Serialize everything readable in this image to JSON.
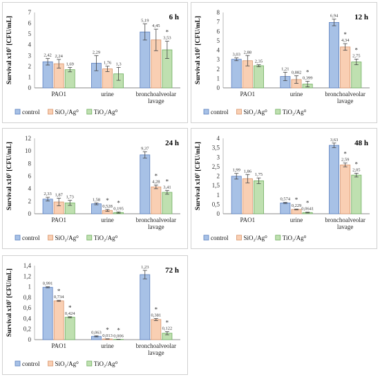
{
  "legend": [
    {
      "label": "control",
      "color": "#a7c1e6",
      "stroke": "#5b7fbf"
    },
    {
      "label": "SiO₂/Ag⁰",
      "color": "#f9cfb3",
      "stroke": "#d8936a"
    },
    {
      "label": "TiO₂/Ag⁰",
      "color": "#bfe0b0",
      "stroke": "#6fae5f"
    }
  ],
  "chart_data": [
    {
      "type": "bar",
      "time_label": "6 h",
      "ylabel": "Survival x10⁷ [CFU/mL]",
      "ylim": [
        0,
        7
      ],
      "yticks": [
        0,
        1,
        2,
        3,
        4,
        5,
        6,
        7
      ],
      "categories": [
        "PAO1",
        "urine",
        "bronchoalveolar lavage"
      ],
      "series": [
        {
          "name": "control",
          "values": [
            2.42,
            2.29,
            5.19
          ],
          "labels": [
            "2,42",
            "2,29",
            "5,19"
          ],
          "errors": [
            0.3,
            0.7,
            0.75
          ],
          "stars": [
            false,
            false,
            false
          ]
        },
        {
          "name": "SiO₂/Ag⁰",
          "values": [
            2.24,
            1.76,
            4.45
          ],
          "labels": [
            "2,24",
            "1,76",
            "4,45"
          ],
          "errors": [
            0.4,
            0.25,
            1.0
          ],
          "stars": [
            false,
            false,
            false
          ]
        },
        {
          "name": "TiO₂/Ag⁰",
          "values": [
            1.69,
            1.3,
            3.53
          ],
          "labels": [
            "1,69",
            "1,3",
            "3,53"
          ],
          "errors": [
            0.2,
            0.6,
            0.8
          ],
          "stars": [
            false,
            false,
            true
          ]
        }
      ]
    },
    {
      "type": "bar",
      "time_label": "12 h",
      "ylabel": "Survival x10⁷ [CFU/mL]",
      "ylim": [
        0,
        8
      ],
      "yticks": [
        0,
        1,
        2,
        3,
        4,
        5,
        6,
        7,
        8
      ],
      "categories": [
        "PAO1",
        "urine",
        "bronchoalveolar lavage"
      ],
      "series": [
        {
          "name": "control",
          "values": [
            3.03,
            1.21,
            6.94
          ],
          "labels": [
            "3,03",
            "1,21",
            "6,94"
          ],
          "errors": [
            0.15,
            0.45,
            0.35
          ],
          "stars": [
            false,
            false,
            false
          ]
        },
        {
          "name": "SiO₂/Ag⁰",
          "values": [
            2.88,
            0.882,
            4.34
          ],
          "labels": [
            "2,88",
            "0,882",
            "4,34"
          ],
          "errors": [
            0.55,
            0.4,
            0.35
          ],
          "stars": [
            false,
            false,
            true
          ]
        },
        {
          "name": "TiO₂/Ag⁰",
          "values": [
            2.35,
            0.399,
            2.75
          ],
          "labels": [
            "2,35",
            "0,399",
            "2,75"
          ],
          "errors": [
            0.1,
            0.3,
            0.3
          ],
          "stars": [
            false,
            true,
            true
          ]
        }
      ]
    },
    {
      "type": "bar",
      "time_label": "24 h",
      "ylabel": "Survival x10⁷ [CFU/mL]",
      "ylim": [
        0,
        12
      ],
      "yticks": [
        0,
        2,
        4,
        6,
        8,
        10,
        12
      ],
      "categories": [
        "PAO1",
        "urine",
        "bronchoalveolar lavage"
      ],
      "series": [
        {
          "name": "control",
          "values": [
            2.33,
            1.58,
            9.37
          ],
          "labels": [
            "2,33",
            "1,58",
            "9,37"
          ],
          "errors": [
            0.3,
            0.15,
            0.5
          ],
          "stars": [
            false,
            false,
            false
          ]
        },
        {
          "name": "SiO₂/Ag⁰",
          "values": [
            1.87,
            0.528,
            4.28
          ],
          "labels": [
            "1,87",
            "0,528",
            "4,28"
          ],
          "errors": [
            0.6,
            0.15,
            0.3
          ],
          "stars": [
            false,
            true,
            true
          ]
        },
        {
          "name": "TiO₂/Ag⁰",
          "values": [
            1.73,
            0.195,
            3.41
          ],
          "labels": [
            "1,73",
            "0,195",
            "3,41"
          ],
          "errors": [
            0.4,
            0.1,
            0.3
          ],
          "stars": [
            false,
            true,
            true
          ]
        }
      ]
    },
    {
      "type": "bar",
      "time_label": "48 h",
      "ylabel": "Survival x10⁷ [CFU/mL]",
      "ylim": [
        0,
        4
      ],
      "yticks": [
        0,
        0.5,
        1,
        1.5,
        2,
        2.5,
        3,
        3.5,
        4
      ],
      "ytick_labels": [
        "0",
        "0,5",
        "1",
        "1,5",
        "2",
        "2,5",
        "3",
        "3,5",
        "4"
      ],
      "categories": [
        "PAO1",
        "urine",
        "bronchoalveolar lavage"
      ],
      "series": [
        {
          "name": "control",
          "values": [
            1.99,
            0.574,
            3.63
          ],
          "labels": [
            "1,99",
            "0,574",
            "3,63"
          ],
          "errors": [
            0.15,
            0.03,
            0.12
          ],
          "stars": [
            false,
            false,
            false
          ]
        },
        {
          "name": "SiO₂/Ag⁰",
          "values": [
            1.86,
            0.229,
            2.59
          ],
          "labels": [
            "1,86",
            "0,229",
            "2,59"
          ],
          "errors": [
            0.22,
            0.02,
            0.1
          ],
          "stars": [
            false,
            true,
            true
          ]
        },
        {
          "name": "TiO₂/Ag⁰",
          "values": [
            1.75,
            0.0641,
            2.05
          ],
          "labels": [
            "1,75",
            "0,0641",
            "2,05"
          ],
          "errors": [
            0.15,
            0.02,
            0.1
          ],
          "stars": [
            false,
            true,
            true
          ]
        }
      ]
    },
    {
      "type": "bar",
      "time_label": "72 h",
      "ylabel": "Survival x10⁷ [CFU/mL]",
      "ylim": [
        0,
        1.4
      ],
      "yticks": [
        0,
        0.2,
        0.4,
        0.6,
        0.8,
        1,
        1.2,
        1.4
      ],
      "ytick_labels": [
        "0",
        "0,2",
        "0,4",
        "0,6",
        "0,8",
        "1",
        "1,2",
        "1,4"
      ],
      "categories": [
        "PAO1",
        "urine",
        "bronchoalveolar lavage"
      ],
      "series": [
        {
          "name": "control",
          "values": [
            0.991,
            0.063,
            1.23
          ],
          "labels": [
            "0,991",
            "0,063",
            "1,23"
          ],
          "errors": [
            0.01,
            0.01,
            0.08
          ],
          "stars": [
            false,
            false,
            false
          ]
        },
        {
          "name": "SiO₂/Ag⁰",
          "values": [
            0.734,
            0.013,
            0.381
          ],
          "labels": [
            "0,734",
            "0,013",
            "0,381"
          ],
          "errors": [
            0.01,
            0.003,
            0.02
          ],
          "stars": [
            true,
            true,
            true
          ]
        },
        {
          "name": "TiO₂/Ag⁰",
          "values": [
            0.424,
            0.006,
            0.122
          ],
          "labels": [
            "0,424",
            "0,006",
            "0,122"
          ],
          "errors": [
            0.01,
            0.002,
            0.03
          ],
          "stars": [
            true,
            true,
            true
          ]
        }
      ]
    }
  ]
}
